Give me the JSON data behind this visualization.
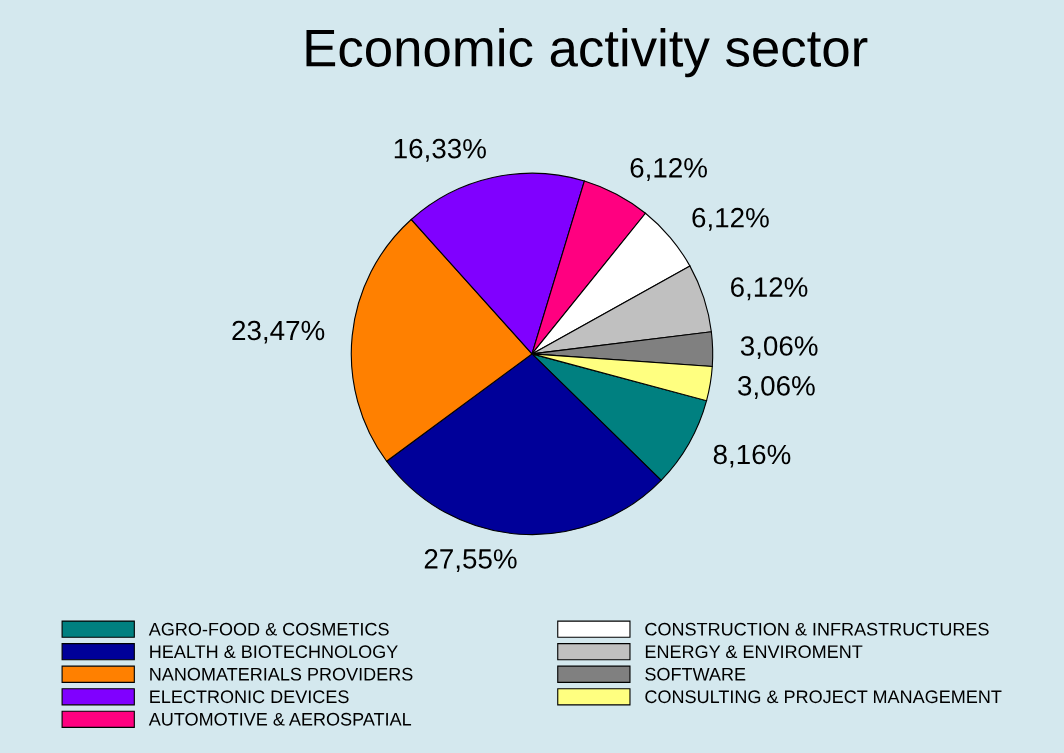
{
  "chart_data": {
    "type": "pie",
    "title": "Economic activity sector",
    "categories": [
      "AGRO-FOOD & COSMETICS",
      "HEALTH & BIOTECHNOLOGY",
      "NANOMATERIALS PROVIDERS",
      "ELECTRONIC DEVICES",
      "AUTOMOTIVE & AEROSPATIAL",
      "CONSTRUCTION & INFRASTRUCTURES",
      "ENERGY & ENVIROMENT",
      "SOFTWARE",
      "CONSULTING & PROJECT MANAGEMENT"
    ],
    "values": [
      8.16,
      27.55,
      23.47,
      16.33,
      6.12,
      6.12,
      6.12,
      3.06,
      3.06
    ],
    "value_labels": [
      "8,16%",
      "27,55%",
      "23,47%",
      "16,33%",
      "6,12%",
      "6,12%",
      "6,12%",
      "3,06%",
      "3,06%"
    ],
    "colors": [
      "#008080",
      "#000099",
      "#ff8000",
      "#8000ff",
      "#ff0080",
      "#ffffff",
      "#c0c0c0",
      "#808080",
      "#ffff80"
    ],
    "legend": "bottom"
  }
}
